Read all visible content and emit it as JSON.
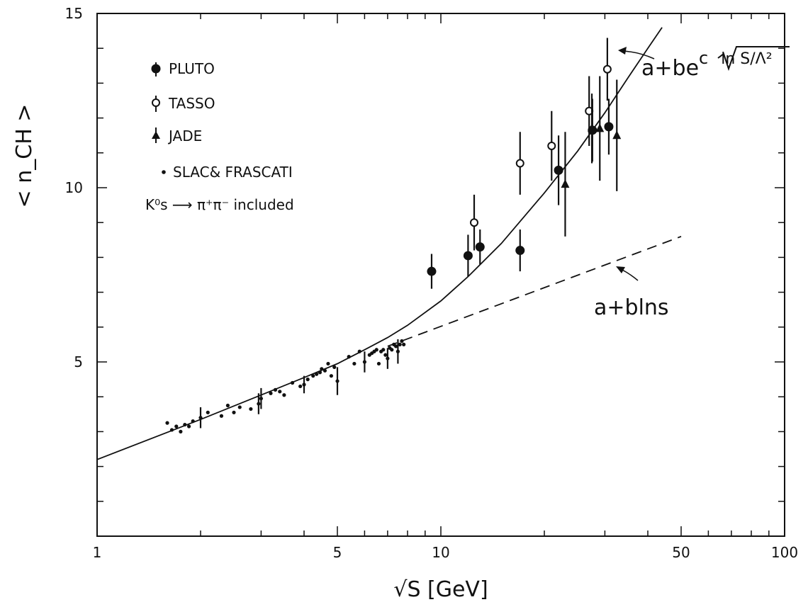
{
  "chart_data": {
    "type": "scatter",
    "x_scale": "log",
    "xlim": [
      1,
      100
    ],
    "ylim": [
      0,
      15
    ],
    "xticks": [
      1,
      5,
      10,
      50,
      100
    ],
    "xtick_labels": [
      "1",
      "5",
      "10",
      "50",
      "100"
    ],
    "yticks": [
      5,
      10,
      15
    ],
    "ytick_labels": [
      "5",
      "10",
      "15"
    ],
    "xlabel": "√S [GeV]",
    "ylabel": "< n_CH >",
    "legend_position": "top-left",
    "legend_note": "K⁰s ⟶ π⁺π⁻ included",
    "series": [
      {
        "name": "PLUTO",
        "marker": "filled-circle",
        "points": [
          {
            "x": 9.4,
            "y": 7.6,
            "err": 0.5
          },
          {
            "x": 12.0,
            "y": 8.05,
            "err": 0.6
          },
          {
            "x": 13.0,
            "y": 8.3,
            "err": 0.5
          },
          {
            "x": 17.0,
            "y": 8.2,
            "err": 0.6
          },
          {
            "x": 22.0,
            "y": 10.5,
            "err": 1.0
          },
          {
            "x": 27.6,
            "y": 11.65,
            "err": 0.9
          },
          {
            "x": 30.8,
            "y": 11.75,
            "err": 0.8
          }
        ]
      },
      {
        "name": "TASSO",
        "marker": "open-circle",
        "points": [
          {
            "x": 12.5,
            "y": 9.0,
            "err": 0.8
          },
          {
            "x": 17.0,
            "y": 10.7,
            "err": 0.9
          },
          {
            "x": 21.0,
            "y": 11.2,
            "err": 1.0
          },
          {
            "x": 27.0,
            "y": 12.2,
            "err": 1.0
          },
          {
            "x": 30.5,
            "y": 13.4,
            "err": 0.9
          }
        ]
      },
      {
        "name": "JADE",
        "marker": "triangle",
        "points": [
          {
            "x": 23.0,
            "y": 10.1,
            "err": 1.5
          },
          {
            "x": 27.5,
            "y": 11.7,
            "err": 1.0
          },
          {
            "x": 29.0,
            "y": 11.7,
            "err": 1.5
          },
          {
            "x": 32.5,
            "y": 11.5,
            "err": 1.6
          }
        ]
      },
      {
        "name": "SLAC& FRASCATI",
        "marker": "dot",
        "points": [
          {
            "x": 1.6,
            "y": 3.25
          },
          {
            "x": 1.65,
            "y": 3.05
          },
          {
            "x": 1.7,
            "y": 3.15
          },
          {
            "x": 1.75,
            "y": 3.0
          },
          {
            "x": 1.8,
            "y": 3.2
          },
          {
            "x": 1.85,
            "y": 3.15
          },
          {
            "x": 1.9,
            "y": 3.3
          },
          {
            "x": 2.0,
            "y": 3.4,
            "err": 0.3
          },
          {
            "x": 2.1,
            "y": 3.55
          },
          {
            "x": 2.3,
            "y": 3.45
          },
          {
            "x": 2.4,
            "y": 3.75
          },
          {
            "x": 2.5,
            "y": 3.55
          },
          {
            "x": 2.6,
            "y": 3.7
          },
          {
            "x": 2.8,
            "y": 3.65
          },
          {
            "x": 2.95,
            "y": 3.8,
            "err": 0.3
          },
          {
            "x": 3.0,
            "y": 3.95,
            "err": 0.3
          },
          {
            "x": 3.2,
            "y": 4.1
          },
          {
            "x": 3.3,
            "y": 4.2
          },
          {
            "x": 3.4,
            "y": 4.15
          },
          {
            "x": 3.5,
            "y": 4.05
          },
          {
            "x": 3.7,
            "y": 4.4
          },
          {
            "x": 3.9,
            "y": 4.3
          },
          {
            "x": 4.0,
            "y": 4.35,
            "err": 0.25
          },
          {
            "x": 4.1,
            "y": 4.5
          },
          {
            "x": 4.25,
            "y": 4.6
          },
          {
            "x": 4.35,
            "y": 4.65
          },
          {
            "x": 4.45,
            "y": 4.7
          },
          {
            "x": 4.5,
            "y": 4.8
          },
          {
            "x": 4.6,
            "y": 4.75
          },
          {
            "x": 4.7,
            "y": 4.95
          },
          {
            "x": 4.8,
            "y": 4.6
          },
          {
            "x": 4.9,
            "y": 4.85
          },
          {
            "x": 5.0,
            "y": 4.45,
            "err": 0.4
          },
          {
            "x": 5.4,
            "y": 5.15
          },
          {
            "x": 5.6,
            "y": 4.95
          },
          {
            "x": 5.8,
            "y": 5.3
          },
          {
            "x": 6.0,
            "y": 5.0,
            "err": 0.3
          },
          {
            "x": 6.2,
            "y": 5.2
          },
          {
            "x": 6.3,
            "y": 5.25
          },
          {
            "x": 6.4,
            "y": 5.3
          },
          {
            "x": 6.5,
            "y": 5.35
          },
          {
            "x": 6.6,
            "y": 4.95
          },
          {
            "x": 6.7,
            "y": 5.3
          },
          {
            "x": 6.8,
            "y": 5.35
          },
          {
            "x": 6.9,
            "y": 5.2
          },
          {
            "x": 7.0,
            "y": 5.1,
            "err": 0.3
          },
          {
            "x": 7.1,
            "y": 5.4
          },
          {
            "x": 7.2,
            "y": 5.35
          },
          {
            "x": 7.3,
            "y": 5.5
          },
          {
            "x": 7.4,
            "y": 5.45
          },
          {
            "x": 7.5,
            "y": 5.3,
            "err": 0.35
          },
          {
            "x": 7.6,
            "y": 5.5
          },
          {
            "x": 7.7,
            "y": 5.6
          },
          {
            "x": 7.8,
            "y": 5.5
          }
        ]
      }
    ],
    "curves": [
      {
        "label_parts": [
          "a+be",
          "c",
          "ln S/Λ²"
        ],
        "style": "solid",
        "points": [
          [
            1,
            2.2
          ],
          [
            2,
            3.35
          ],
          [
            3,
            4.05
          ],
          [
            4,
            4.55
          ],
          [
            5,
            4.95
          ],
          [
            6,
            5.35
          ],
          [
            7,
            5.7
          ],
          [
            8,
            6.05
          ],
          [
            10,
            6.75
          ],
          [
            12,
            7.45
          ],
          [
            15,
            8.4
          ],
          [
            20,
            9.85
          ],
          [
            25,
            11.05
          ],
          [
            30,
            12.15
          ],
          [
            35,
            13.15
          ],
          [
            40,
            14.0
          ],
          [
            44,
            14.6
          ]
        ]
      },
      {
        "label": "a+blns",
        "style": "dashed",
        "points": [
          [
            7,
            5.45
          ],
          [
            50,
            8.6
          ]
        ]
      }
    ]
  }
}
